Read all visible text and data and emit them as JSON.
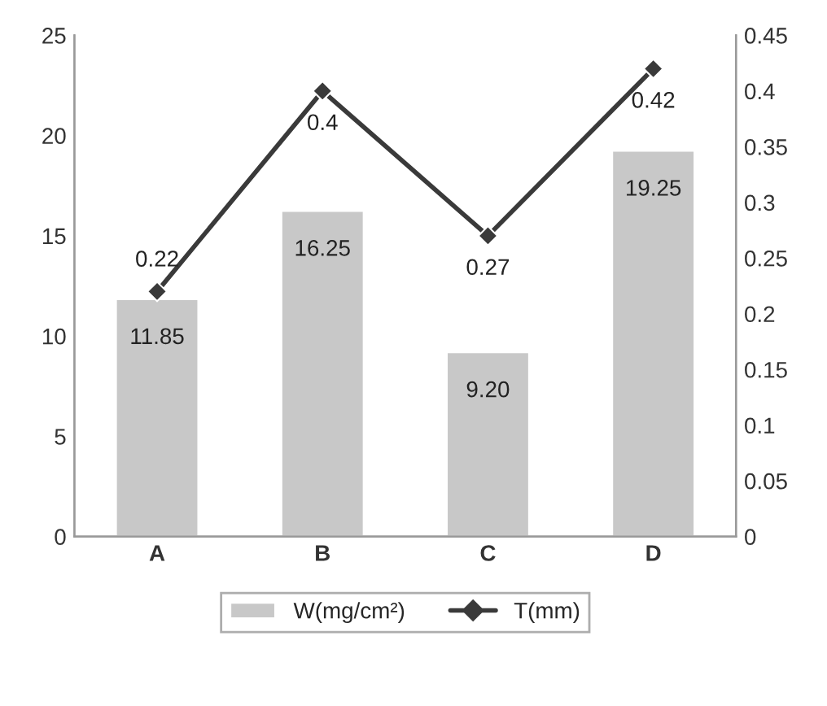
{
  "chart_data": {
    "type": "bar",
    "categories": [
      "A",
      "B",
      "C",
      "D"
    ],
    "series": [
      {
        "name": "W(mg/cm²)",
        "color": "#c8c8c8",
        "values": [
          11.85,
          16.25,
          9.2,
          19.25
        ],
        "value_labels": [
          "11.85",
          "16.25",
          "9.20",
          "19.25"
        ]
      },
      {
        "name": "T(mm)",
        "type": "line",
        "axis": "y2",
        "color": "#3a3a3a",
        "marker": "diamond",
        "values": [
          0.22,
          0.4,
          0.27,
          0.42
        ],
        "value_labels": [
          "0.22",
          "0.4",
          "0.27",
          "0.42"
        ]
      }
    ],
    "ylim": [
      0,
      25
    ],
    "yticks": [
      0,
      5,
      10,
      15,
      20,
      25
    ],
    "y2lim": [
      0,
      0.45
    ],
    "y2ticks": [
      0,
      0.05,
      0.1,
      0.15,
      0.2,
      0.25,
      0.3,
      0.35,
      0.4,
      0.45
    ],
    "grid": false,
    "legend": "bottom"
  }
}
